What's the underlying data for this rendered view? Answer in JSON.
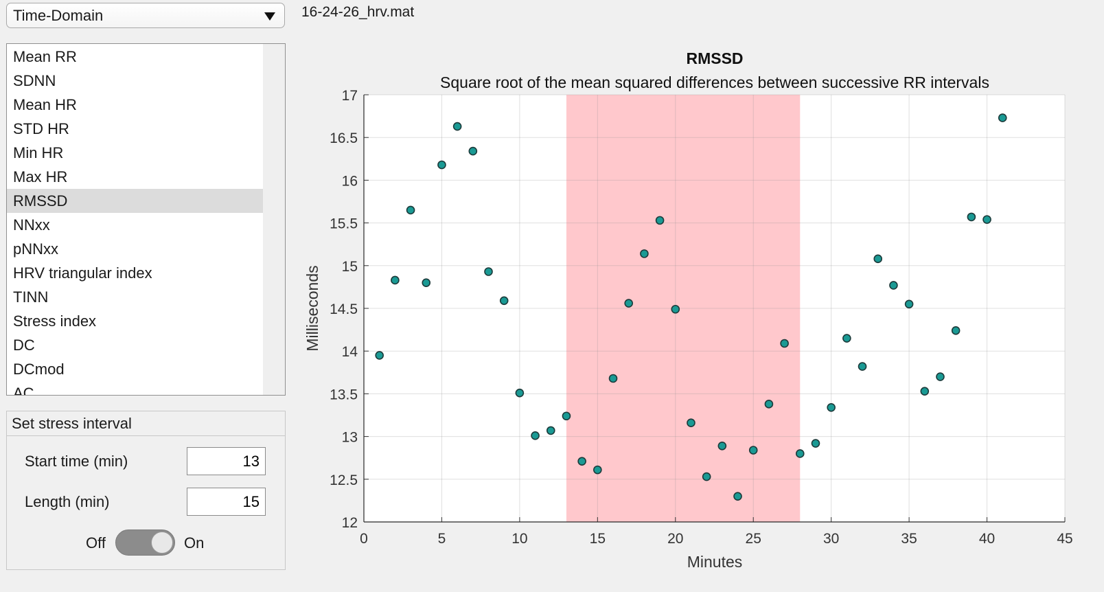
{
  "dropdown": {
    "value": "Time-Domain"
  },
  "file": {
    "name": "16-24-26_hrv.mat"
  },
  "metrics": {
    "items": [
      "Mean RR",
      "SDNN",
      "Mean HR",
      "STD HR",
      "Min HR",
      "Max HR",
      "RMSSD",
      "NNxx",
      "pNNxx",
      "HRV triangular index",
      "TINN",
      "Stress index",
      "DC",
      "DCmod",
      "AC"
    ],
    "selected": "RMSSD"
  },
  "stress_panel": {
    "title": "Set stress interval",
    "start_label": "Start time (min)",
    "start_value": "13",
    "length_label": "Length (min)",
    "length_value": "15",
    "toggle_off_label": "Off",
    "toggle_on_label": "On",
    "toggle_state": "On"
  },
  "colors": {
    "marker_fill": "#1a9a94",
    "marker_edge": "#1c3a3a",
    "stress_band": "#ffc8cc",
    "grid": "#e1e1e1"
  },
  "chart_data": {
    "type": "scatter",
    "title": "RMSSD",
    "subtitle": "Square root of the mean squared differences between successive RR intervals",
    "xlabel": "Minutes",
    "ylabel": "Milliseconds",
    "xlim": [
      0,
      45
    ],
    "ylim": [
      12,
      17
    ],
    "xticks": [
      0,
      5,
      10,
      15,
      20,
      25,
      30,
      35,
      40,
      45
    ],
    "yticks": [
      12,
      12.5,
      13,
      13.5,
      14,
      14.5,
      15,
      15.5,
      16,
      16.5,
      17
    ],
    "grid": true,
    "highlight_band": {
      "x_start": 13,
      "x_end": 28
    },
    "x": [
      1,
      2,
      3,
      4,
      5,
      6,
      7,
      8,
      9,
      10,
      11,
      12,
      13,
      14,
      15,
      16,
      17,
      18,
      19,
      20,
      21,
      22,
      23,
      24,
      25,
      26,
      27,
      28,
      29,
      30,
      31,
      32,
      33,
      34,
      35,
      36,
      37,
      38,
      39,
      40,
      41
    ],
    "y": [
      13.95,
      14.83,
      15.65,
      14.8,
      16.18,
      16.63,
      16.34,
      14.93,
      14.59,
      13.51,
      13.01,
      13.07,
      13.24,
      12.71,
      12.61,
      13.68,
      14.56,
      15.14,
      15.53,
      14.49,
      13.16,
      12.53,
      12.89,
      12.3,
      12.84,
      13.38,
      14.09,
      12.8,
      12.92,
      13.34,
      14.15,
      13.82,
      15.08,
      14.77,
      14.55,
      13.53,
      13.7,
      14.24,
      15.57,
      15.54,
      16.73
    ]
  }
}
